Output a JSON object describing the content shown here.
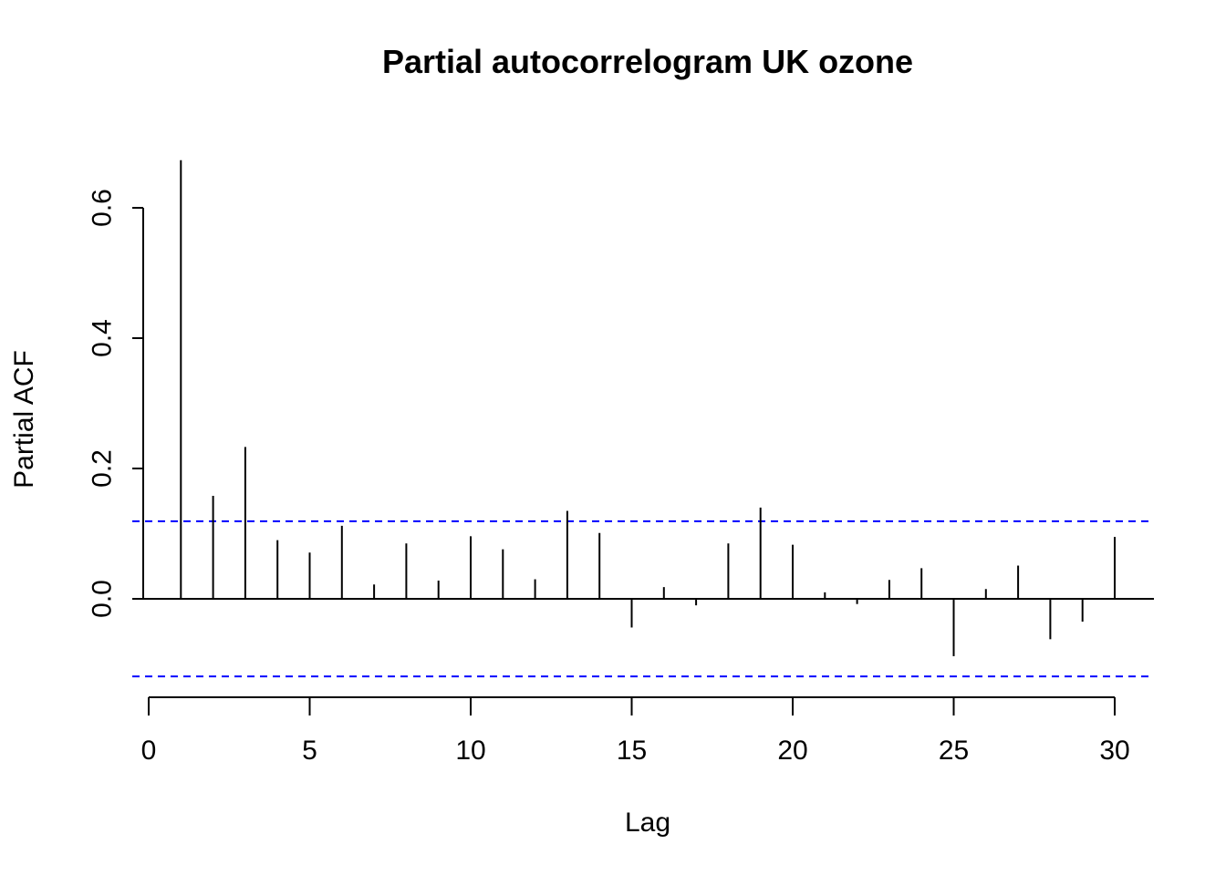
{
  "chart_data": {
    "type": "bar",
    "title": "Partial autocorrelogram UK ozone",
    "xlabel": "Lag",
    "ylabel": "Partial ACF",
    "x": [
      1,
      2,
      3,
      4,
      5,
      6,
      7,
      8,
      9,
      10,
      11,
      12,
      13,
      14,
      15,
      16,
      17,
      18,
      19,
      20,
      21,
      22,
      23,
      24,
      25,
      26,
      27,
      28,
      29,
      30
    ],
    "values": [
      0.673,
      0.158,
      0.233,
      0.09,
      0.071,
      0.112,
      0.022,
      0.085,
      0.028,
      0.096,
      0.076,
      0.03,
      0.135,
      0.101,
      -0.044,
      0.018,
      -0.01,
      0.085,
      0.14,
      0.083,
      0.01,
      -0.008,
      0.029,
      0.047,
      -0.088,
      0.015,
      0.051,
      -0.062,
      -0.035,
      0.095
    ],
    "confidence_bounds": [
      0.119,
      -0.119
    ],
    "xticks": [
      0,
      5,
      10,
      15,
      20,
      25,
      30
    ],
    "xtick_labels": [
      "0",
      "5",
      "10",
      "15",
      "20",
      "25",
      "30"
    ],
    "yticks": [
      0.0,
      0.2,
      0.4,
      0.6
    ],
    "ytick_labels": [
      "0.0",
      "0.2",
      "0.4",
      "0.6"
    ],
    "xlim": [
      0,
      30
    ],
    "ylim": [
      -0.119,
      0.673
    ],
    "grid": false,
    "colors": {
      "bars": "#000000",
      "bounds": "#0000ff",
      "zero_line": "#000000"
    }
  }
}
